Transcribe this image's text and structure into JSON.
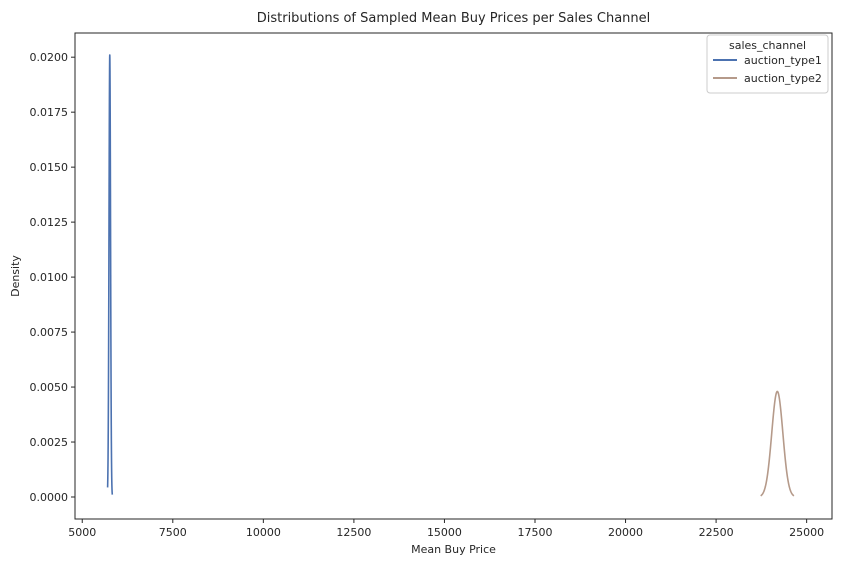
{
  "chart_data": {
    "type": "line",
    "title": "Distributions of Sampled Mean Buy Prices per Sales Channel",
    "xlabel": "Mean Buy Price",
    "ylabel": "Density",
    "xlim": [
      4800,
      25700
    ],
    "ylim": [
      -0.001,
      0.0211
    ],
    "xticks": [
      5000,
      7500,
      10000,
      12500,
      15000,
      17500,
      20000,
      22500,
      25000
    ],
    "xtick_labels": [
      "5000",
      "7500",
      "10000",
      "12500",
      "15000",
      "17500",
      "20000",
      "22500",
      "25000"
    ],
    "yticks": [
      0.0,
      0.0025,
      0.005,
      0.0075,
      0.01,
      0.0125,
      0.015,
      0.0175,
      0.02
    ],
    "ytick_labels": [
      "0.0000",
      "0.0025",
      "0.0050",
      "0.0075",
      "0.0100",
      "0.0125",
      "0.0150",
      "0.0175",
      "0.0200"
    ],
    "grid": false,
    "legend": {
      "title": "sales_channel",
      "placement": "top-right"
    },
    "series": [
      {
        "name": "auction_type1",
        "color": "#4c72b0",
        "kind": "gaussian-kde",
        "mean": 5760,
        "peak_density": 0.0201,
        "x_range": [
          5700,
          5830
        ]
      },
      {
        "name": "auction_type2",
        "color": "#b59a8a",
        "kind": "gaussian-kde",
        "mean": 24190,
        "peak_density": 0.0048,
        "x_range": [
          23730,
          24650
        ]
      }
    ]
  }
}
